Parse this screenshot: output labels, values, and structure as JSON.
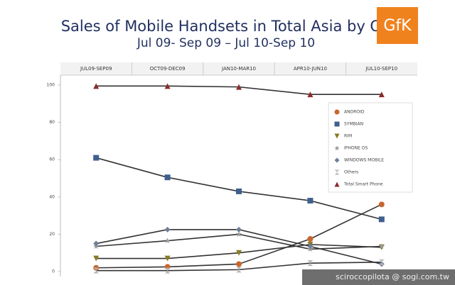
{
  "chart_data": {
    "type": "line",
    "title": "Sales of Mobile Handsets in Total Asia by OS",
    "subtitle": "Jul 09- Sep 09 – Jul 10-Sep 10",
    "logo": "GfK",
    "watermark": "sciroccopilota  @ sogi.com.tw",
    "categories": [
      "JUL09-SEP09",
      "OCT09-DEC09",
      "JAN10-MAR10",
      "APR10-JUN10",
      "JUL10-SEP10"
    ],
    "ylim": [
      0,
      100
    ],
    "yticks": [
      0,
      20,
      40,
      60,
      80,
      100
    ],
    "series": [
      {
        "name": "ANDROID",
        "color": "#c8662e",
        "marker": "circle",
        "values": [
          2,
          2.5,
          4,
          17.5,
          36
        ]
      },
      {
        "name": "SYMBIAN",
        "color": "#3f5f8f",
        "marker": "square",
        "values": [
          61,
          50.5,
          43,
          38,
          28
        ]
      },
      {
        "name": "RIM",
        "color": "#8a7a22",
        "marker": "tri-down",
        "values": [
          7,
          7,
          10,
          14.5,
          13
        ]
      },
      {
        "name": "IPHONE OS",
        "color": "#9a9a9a",
        "marker": "star",
        "values": [
          13.5,
          16.5,
          20,
          12,
          13.5
        ]
      },
      {
        "name": "WINDOWS MOBILE",
        "color": "#6f7f99",
        "marker": "diamond",
        "values": [
          15,
          22.5,
          22.5,
          13.5,
          4
        ]
      },
      {
        "name": "Others",
        "color": "#b4b4b4",
        "marker": "hourglass",
        "values": [
          0.5,
          0.5,
          1,
          4.5,
          5
        ]
      },
      {
        "name": "Total Smart Phone",
        "color": "#8b2b2b",
        "marker": "tri-up",
        "values": [
          99.5,
          99.5,
          99,
          95,
          95
        ]
      }
    ]
  }
}
